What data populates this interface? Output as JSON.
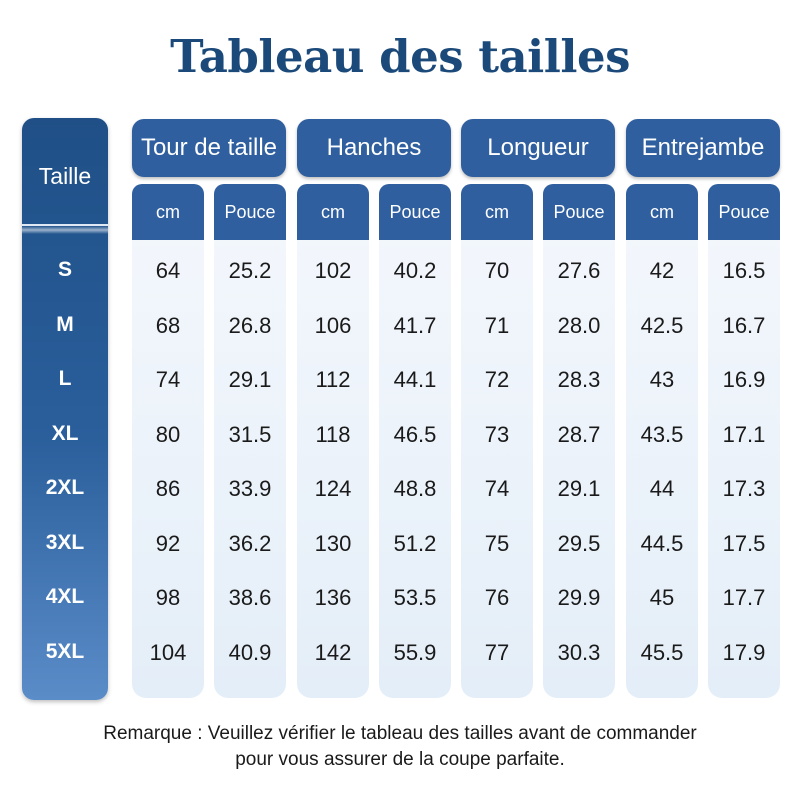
{
  "title": "Tableau des tailles",
  "size_header": "Taille",
  "groups": [
    {
      "label": "Tour de taille",
      "units": [
        "cm",
        "Pouce"
      ]
    },
    {
      "label": "Hanches",
      "units": [
        "cm",
        "Pouce"
      ]
    },
    {
      "label": "Longueur",
      "units": [
        "cm",
        "Pouce"
      ]
    },
    {
      "label": "Entrejambe",
      "units": [
        "cm",
        "Pouce"
      ]
    }
  ],
  "rows": [
    {
      "size": "S",
      "values": [
        "64",
        "25.2",
        "102",
        "40.2",
        "70",
        "27.6",
        "42",
        "16.5"
      ]
    },
    {
      "size": "M",
      "values": [
        "68",
        "26.8",
        "106",
        "41.7",
        "71",
        "28.0",
        "42.5",
        "16.7"
      ]
    },
    {
      "size": "L",
      "values": [
        "74",
        "29.1",
        "112",
        "44.1",
        "72",
        "28.3",
        "43",
        "16.9"
      ]
    },
    {
      "size": "XL",
      "values": [
        "80",
        "31.5",
        "118",
        "46.5",
        "73",
        "28.7",
        "43.5",
        "17.1"
      ]
    },
    {
      "size": "2XL",
      "values": [
        "86",
        "33.9",
        "124",
        "48.8",
        "74",
        "29.1",
        "44",
        "17.3"
      ]
    },
    {
      "size": "3XL",
      "values": [
        "92",
        "36.2",
        "130",
        "51.2",
        "75",
        "29.5",
        "44.5",
        "17.5"
      ]
    },
    {
      "size": "4XL",
      "values": [
        "98",
        "38.6",
        "136",
        "53.5",
        "76",
        "29.9",
        "45",
        "17.7"
      ]
    },
    {
      "size": "5XL",
      "values": [
        "104",
        "40.9",
        "142",
        "55.9",
        "77",
        "30.3",
        "45.5",
        "17.9"
      ]
    }
  ],
  "note": {
    "line1": "Remarque : Veuillez vérifier le tableau des tailles avant de commander",
    "line2": "pour vous assurer de la coupe parfaite."
  },
  "colors": {
    "title": "#1b4a7a",
    "header_blue": "#2f5f9e",
    "size_column_top": "#1f4f86",
    "size_column_bottom": "#5a8cc8",
    "cell_background": "#f3f7fc"
  }
}
